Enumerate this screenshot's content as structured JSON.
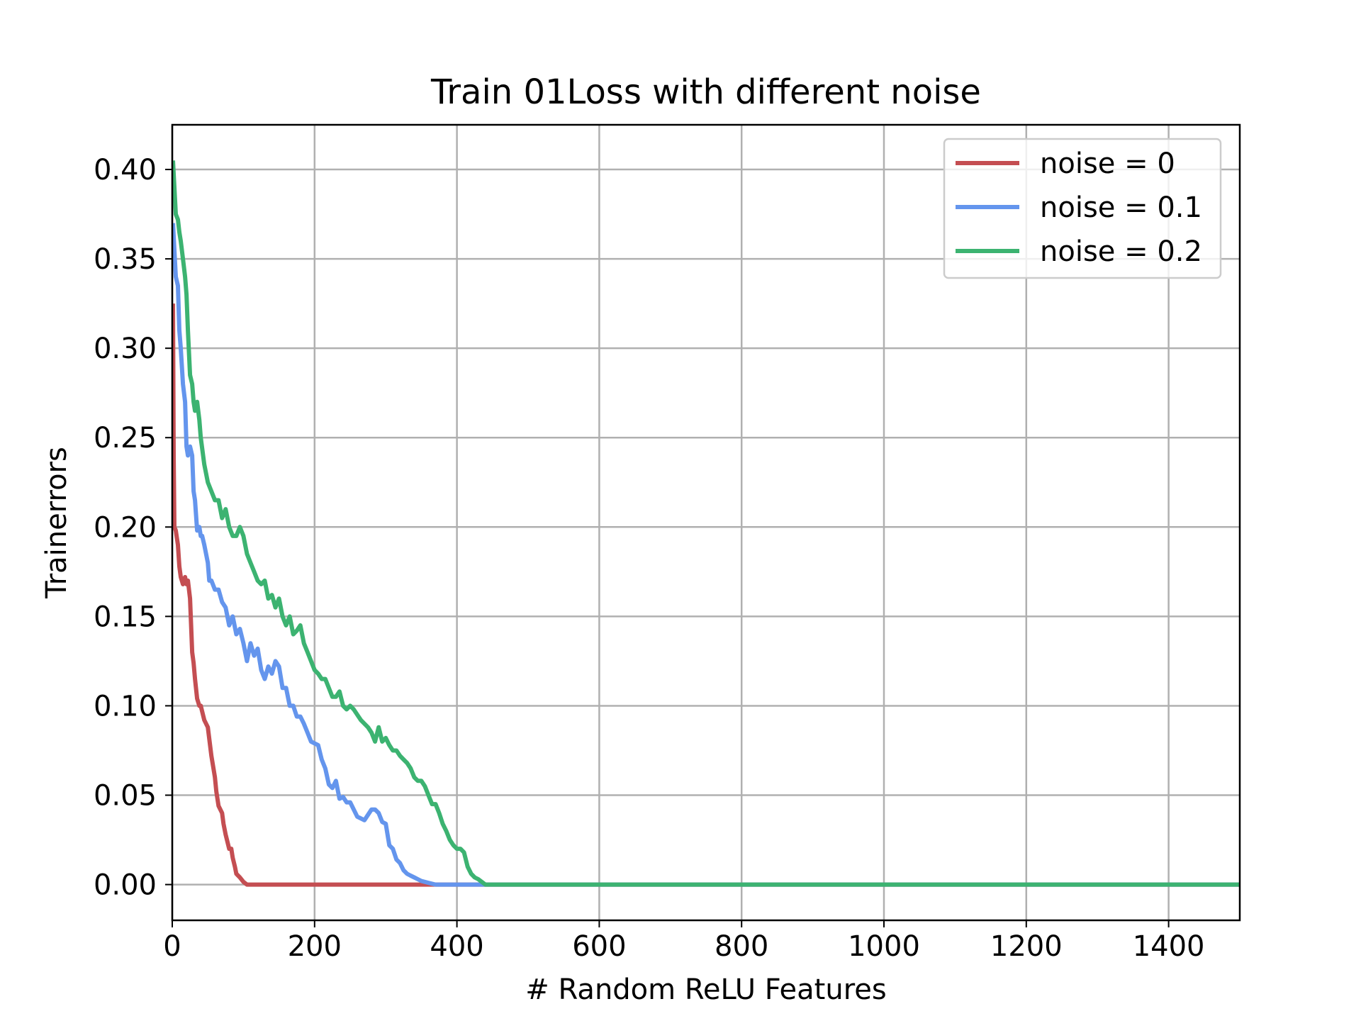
{
  "chart_data": {
    "type": "line",
    "title": "Train 01Loss with different noise",
    "xlabel": "# Random ReLU Features",
    "ylabel": "Trainerrors",
    "xlim": [
      0,
      1500
    ],
    "ylim": [
      -0.02,
      0.425
    ],
    "xticks": [
      0,
      200,
      400,
      600,
      800,
      1000,
      1200,
      1400
    ],
    "xtick_labels": [
      "0",
      "200",
      "400",
      "600",
      "800",
      "1000",
      "1200",
      "1400"
    ],
    "yticks": [
      0.0,
      0.05,
      0.1,
      0.15,
      0.2,
      0.25,
      0.3,
      0.35,
      0.4
    ],
    "ytick_labels": [
      "0.00",
      "0.05",
      "0.10",
      "0.15",
      "0.20",
      "0.25",
      "0.30",
      "0.35",
      "0.40"
    ],
    "grid": true,
    "legend_position": "top-right",
    "series": [
      {
        "name": "noise = 0",
        "color": "#c44e52",
        "x": [
          1,
          2,
          3,
          5,
          8,
          10,
          12,
          15,
          18,
          20,
          22,
          25,
          28,
          30,
          32,
          35,
          38,
          40,
          45,
          50,
          55,
          60,
          62,
          65,
          70,
          72,
          75,
          80,
          83,
          85,
          88,
          90,
          95,
          100,
          105,
          110,
          150,
          250,
          350,
          1500
        ],
        "y": [
          0.325,
          0.24,
          0.2,
          0.198,
          0.19,
          0.178,
          0.172,
          0.168,
          0.172,
          0.168,
          0.17,
          0.16,
          0.13,
          0.124,
          0.115,
          0.104,
          0.1,
          0.1,
          0.092,
          0.088,
          0.072,
          0.06,
          0.052,
          0.044,
          0.04,
          0.034,
          0.028,
          0.02,
          0.02,
          0.015,
          0.01,
          0.006,
          0.004,
          0.0015,
          0.0,
          0.0,
          0.0,
          0.0,
          0.0,
          0.0
        ]
      },
      {
        "name": "noise = 0.1",
        "color": "#6495ed",
        "x": [
          1,
          3,
          5,
          8,
          10,
          12,
          15,
          18,
          20,
          22,
          25,
          28,
          30,
          32,
          35,
          38,
          40,
          42,
          45,
          50,
          52,
          55,
          60,
          65,
          70,
          75,
          80,
          85,
          90,
          95,
          100,
          105,
          110,
          115,
          120,
          125,
          130,
          135,
          140,
          145,
          150,
          155,
          160,
          165,
          170,
          175,
          180,
          185,
          190,
          195,
          200,
          205,
          210,
          215,
          220,
          225,
          230,
          235,
          240,
          245,
          250,
          255,
          260,
          270,
          280,
          285,
          290,
          295,
          300,
          305,
          310,
          315,
          320,
          325,
          330,
          335,
          340,
          345,
          350,
          360,
          370,
          380,
          1500
        ],
        "y": [
          0.37,
          0.355,
          0.34,
          0.335,
          0.31,
          0.3,
          0.28,
          0.27,
          0.245,
          0.24,
          0.245,
          0.24,
          0.22,
          0.215,
          0.198,
          0.2,
          0.195,
          0.195,
          0.19,
          0.18,
          0.17,
          0.17,
          0.165,
          0.165,
          0.158,
          0.155,
          0.145,
          0.15,
          0.14,
          0.143,
          0.135,
          0.125,
          0.135,
          0.128,
          0.132,
          0.12,
          0.115,
          0.122,
          0.118,
          0.125,
          0.122,
          0.11,
          0.11,
          0.1,
          0.1,
          0.094,
          0.094,
          0.09,
          0.085,
          0.08,
          0.079,
          0.078,
          0.07,
          0.065,
          0.056,
          0.054,
          0.058,
          0.048,
          0.049,
          0.046,
          0.046,
          0.042,
          0.038,
          0.036,
          0.042,
          0.042,
          0.04,
          0.035,
          0.034,
          0.022,
          0.02,
          0.014,
          0.012,
          0.008,
          0.006,
          0.005,
          0.004,
          0.003,
          0.002,
          0.001,
          0.0,
          0.0,
          0.0
        ]
      },
      {
        "name": "noise = 0.2",
        "color": "#3cb371",
        "x": [
          1,
          3,
          5,
          8,
          10,
          12,
          15,
          18,
          20,
          22,
          25,
          28,
          30,
          32,
          35,
          38,
          40,
          45,
          50,
          55,
          60,
          65,
          70,
          75,
          80,
          85,
          90,
          95,
          100,
          105,
          110,
          115,
          120,
          125,
          130,
          135,
          140,
          145,
          150,
          155,
          160,
          165,
          170,
          175,
          180,
          185,
          190,
          195,
          200,
          205,
          210,
          215,
          220,
          225,
          230,
          235,
          240,
          245,
          250,
          255,
          260,
          265,
          270,
          275,
          280,
          285,
          290,
          295,
          300,
          305,
          310,
          315,
          320,
          325,
          330,
          335,
          340,
          345,
          350,
          355,
          360,
          365,
          370,
          375,
          380,
          385,
          390,
          395,
          400,
          405,
          410,
          415,
          420,
          425,
          430,
          440,
          1500
        ],
        "y": [
          0.405,
          0.39,
          0.375,
          0.372,
          0.365,
          0.36,
          0.35,
          0.34,
          0.33,
          0.31,
          0.285,
          0.28,
          0.27,
          0.265,
          0.27,
          0.26,
          0.25,
          0.235,
          0.225,
          0.22,
          0.215,
          0.215,
          0.205,
          0.21,
          0.2,
          0.195,
          0.195,
          0.2,
          0.195,
          0.185,
          0.18,
          0.175,
          0.17,
          0.168,
          0.17,
          0.16,
          0.162,
          0.155,
          0.16,
          0.15,
          0.145,
          0.15,
          0.14,
          0.142,
          0.145,
          0.135,
          0.13,
          0.125,
          0.12,
          0.118,
          0.115,
          0.115,
          0.11,
          0.105,
          0.105,
          0.108,
          0.1,
          0.098,
          0.1,
          0.098,
          0.095,
          0.092,
          0.09,
          0.088,
          0.085,
          0.08,
          0.088,
          0.08,
          0.082,
          0.078,
          0.075,
          0.075,
          0.072,
          0.07,
          0.068,
          0.065,
          0.06,
          0.058,
          0.058,
          0.055,
          0.05,
          0.045,
          0.045,
          0.04,
          0.034,
          0.03,
          0.025,
          0.022,
          0.02,
          0.02,
          0.018,
          0.01,
          0.006,
          0.004,
          0.003,
          0.0,
          0.0
        ]
      }
    ]
  }
}
